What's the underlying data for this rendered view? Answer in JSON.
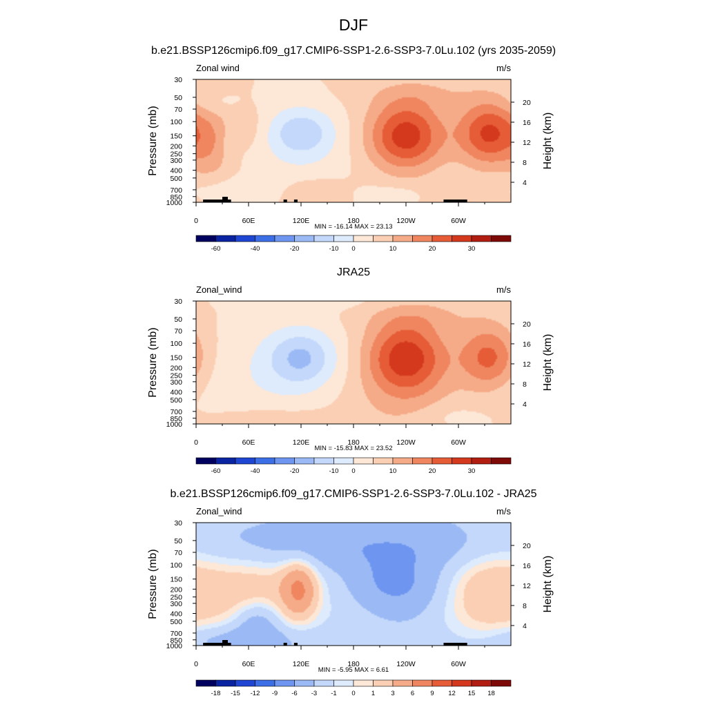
{
  "figure": {
    "title": "DJF"
  },
  "colors": {
    "neg": [
      "#00005f",
      "#0a23a0",
      "#1e46d2",
      "#3c6ee6",
      "#6e96f0",
      "#9bbaf5",
      "#c3d8fa",
      "#deebfc"
    ],
    "pos": [
      "#fde8d8",
      "#fbcfb3",
      "#f6ab88",
      "#ef865f",
      "#e55c36",
      "#d4381d",
      "#b21d12",
      "#7e0a08"
    ],
    "topography": "#000000"
  },
  "panels": [
    {
      "id": "model",
      "title": "b.e21.BSSP126cmip6.f09_g17.CMIP6-SSP1-2.6-SSP3-7.0Lu.102 (yrs 2035-2059)",
      "left_label": "Zonal wind",
      "right_label": "m/s",
      "stats": "MIN = -16.14  MAX =  23.13",
      "colorbar_ticks": [
        "-60",
        "-40",
        "-20",
        "-10",
        "0",
        "10",
        "20",
        "30"
      ]
    },
    {
      "id": "obs",
      "title": "JRA25",
      "left_label": "Zonal_wind",
      "right_label": "m/s",
      "stats": "MIN = -15.83  MAX =  23.52",
      "colorbar_ticks": [
        "-60",
        "-40",
        "-20",
        "-10",
        "0",
        "10",
        "20",
        "30"
      ]
    },
    {
      "id": "diff",
      "title": "b.e21.BSSP126cmip6.f09_g17.CMIP6-SSP1-2.6-SSP3-7.0Lu.102 - JRA25",
      "left_label": "Zonal_wind",
      "right_label": "m/s",
      "stats": "MIN =  -5.95  MAX =   6.61",
      "colorbar_ticks": [
        "-18",
        "-15",
        "-12",
        "-9",
        "-6",
        "-3",
        "-1",
        "0",
        "1",
        "3",
        "6",
        "9",
        "12",
        "15",
        "18"
      ]
    }
  ],
  "axes": {
    "ylabel_left": "Pressure (mb)",
    "ylabel_right": "Height (km)",
    "pressure_ticks": [
      30,
      50,
      70,
      100,
      150,
      200,
      250,
      300,
      400,
      500,
      700,
      850,
      1000
    ],
    "height_ticks": [
      4,
      8,
      12,
      16,
      20
    ],
    "lon_ticks": [
      {
        "lon": 0,
        "label": "0"
      },
      {
        "lon": 60,
        "label": "60E"
      },
      {
        "lon": 120,
        "label": "120E"
      },
      {
        "lon": 180,
        "label": "180"
      },
      {
        "lon": 240,
        "label": "120W"
      },
      {
        "lon": 300,
        "label": "60W"
      }
    ]
  },
  "chart_data": [
    {
      "type": "heatmap",
      "panel": "model",
      "x_type": "longitude",
      "xlim": [
        0,
        360
      ],
      "y_type": "pressure (log)",
      "ylim": [
        1000,
        30
      ],
      "units": "m/s",
      "min": -16.14,
      "max": 23.13,
      "levels": [
        -60,
        -50,
        -40,
        -30,
        -20,
        -15,
        -10,
        -5,
        0,
        5,
        10,
        15,
        20,
        25,
        30
      ],
      "features": [
        {
          "lon": 120,
          "p": 135,
          "value": -13,
          "dlon": 28,
          "dlogp": 0.22
        },
        {
          "lon": 120,
          "p": 400,
          "value": -3,
          "dlon": 40,
          "dlogp": 0.35
        },
        {
          "lon": 240,
          "p": 150,
          "value": 23,
          "dlon": 30,
          "dlogp": 0.3
        },
        {
          "lon": 335,
          "p": 140,
          "value": 21,
          "dlon": 25,
          "dlogp": 0.28
        },
        {
          "lon": 20,
          "p": 200,
          "value": 7,
          "dlon": 18,
          "dlogp": 0.35
        },
        {
          "lon": 40,
          "p": 160,
          "value": -4,
          "dlon": 10,
          "dlogp": 0.2
        },
        {
          "lon": 55,
          "p": 120,
          "value": 4,
          "dlon": 18,
          "dlogp": 0.18
        },
        {
          "lon": 130,
          "p": 800,
          "value": 6,
          "dlon": 30,
          "dlogp": 0.16
        },
        {
          "lon": 40,
          "p": 750,
          "value": -5,
          "dlon": 40,
          "dlogp": 0.12
        },
        {
          "lon": 230,
          "p": 850,
          "value": -5,
          "dlon": 30,
          "dlogp": 0.1
        },
        {
          "lon": 300,
          "p": 900,
          "value": 4,
          "dlon": 50,
          "dlogp": 0.12
        },
        {
          "lon": 260,
          "p": 45,
          "value": 4,
          "dlon": 50,
          "dlogp": 0.15
        },
        {
          "lon": 20,
          "p": 60,
          "value": -3,
          "dlon": 20,
          "dlogp": 0.1
        }
      ],
      "topography_lon_ranges": [
        [
          8,
          40
        ],
        [
          100,
          104
        ],
        [
          112,
          116
        ],
        [
          283,
          310
        ]
      ]
    },
    {
      "type": "heatmap",
      "panel": "obs",
      "x_type": "longitude",
      "xlim": [
        0,
        360
      ],
      "y_type": "pressure (log)",
      "ylim": [
        1000,
        30
      ],
      "units": "m/s",
      "min": -15.83,
      "max": 23.52,
      "levels": [
        -60,
        -50,
        -40,
        -30,
        -20,
        -15,
        -10,
        -5,
        0,
        5,
        10,
        15,
        20,
        25,
        30
      ],
      "features": [
        {
          "lon": 120,
          "p": 150,
          "value": -14,
          "dlon": 28,
          "dlogp": 0.25
        },
        {
          "lon": 80,
          "p": 300,
          "value": -4,
          "dlon": 70,
          "dlogp": 0.45
        },
        {
          "lon": 240,
          "p": 150,
          "value": 23.5,
          "dlon": 32,
          "dlogp": 0.32
        },
        {
          "lon": 335,
          "p": 150,
          "value": 17,
          "dlon": 24,
          "dlogp": 0.28
        },
        {
          "lon": 230,
          "p": 600,
          "value": 4,
          "dlon": 60,
          "dlogp": 0.35
        },
        {
          "lon": 80,
          "p": 850,
          "value": 4,
          "dlon": 50,
          "dlogp": 0.12
        },
        {
          "lon": 290,
          "p": 800,
          "value": -3,
          "dlon": 30,
          "dlogp": 0.12
        },
        {
          "lon": 260,
          "p": 45,
          "value": 4,
          "dlon": 50,
          "dlogp": 0.15
        },
        {
          "lon": 150,
          "p": 30,
          "value": -2,
          "dlon": 60,
          "dlogp": 0.08
        }
      ],
      "topography_lon_ranges": []
    },
    {
      "type": "heatmap",
      "panel": "diff",
      "x_type": "longitude",
      "xlim": [
        0,
        360
      ],
      "y_type": "pressure (log)",
      "ylim": [
        1000,
        30
      ],
      "units": "m/s",
      "min": -5.95,
      "max": 6.61,
      "levels": [
        -18,
        -15,
        -12,
        -9,
        -6,
        -3,
        -1,
        0,
        1,
        3,
        6,
        9,
        12,
        15,
        18
      ],
      "background_value": -2.5,
      "features": [
        {
          "lon": 180,
          "p": 60,
          "value": -3.5,
          "dlon": 130,
          "dlogp": 0.22
        },
        {
          "lon": 70,
          "p": 200,
          "value": 4.5,
          "dlon": 55,
          "dlogp": 0.4
        },
        {
          "lon": 118,
          "p": 200,
          "value": 6.5,
          "dlon": 14,
          "dlogp": 0.25
        },
        {
          "lon": 330,
          "p": 220,
          "value": 4.5,
          "dlon": 40,
          "dlogp": 0.45
        },
        {
          "lon": 225,
          "p": 180,
          "value": -4.5,
          "dlon": 40,
          "dlogp": 0.25
        },
        {
          "lon": 70,
          "p": 500,
          "value": -4,
          "dlon": 18,
          "dlogp": 0.18
        },
        {
          "lon": 180,
          "p": 300,
          "value": 1,
          "dlon": 30,
          "dlogp": 0.5
        },
        {
          "lon": 50,
          "p": 850,
          "value": -3,
          "dlon": 50,
          "dlogp": 0.12
        }
      ],
      "topography_lon_ranges": [
        [
          8,
          40
        ],
        [
          100,
          104
        ],
        [
          112,
          116
        ],
        [
          283,
          310
        ]
      ]
    }
  ]
}
